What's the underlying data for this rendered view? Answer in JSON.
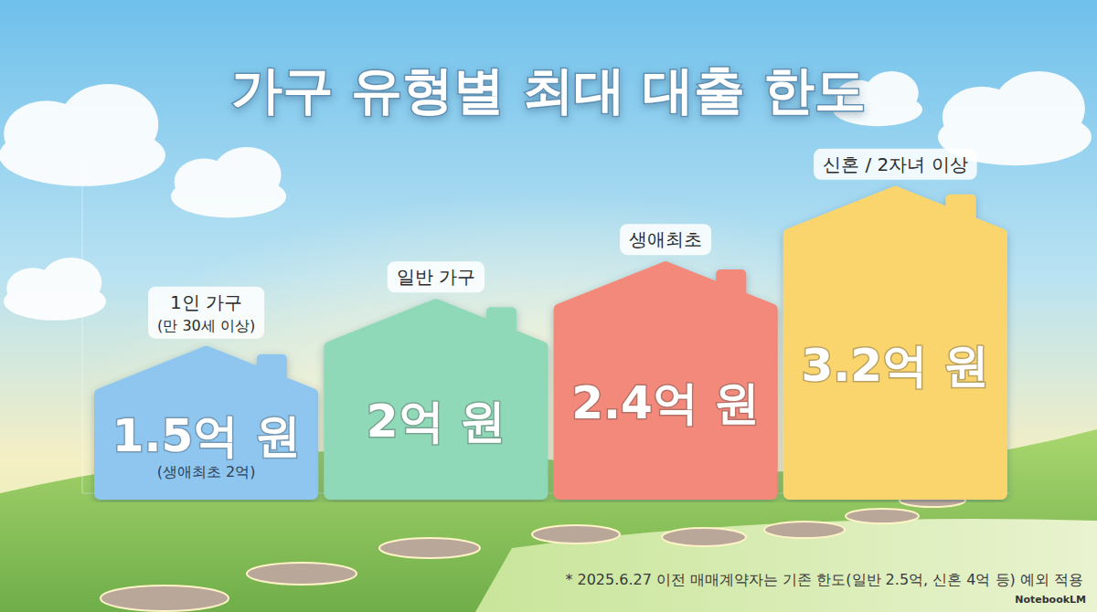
{
  "chart_data": {
    "type": "bar",
    "title": "가구 유형별 최대 대출 한도",
    "categories": [
      "1인 가구",
      "일반 가구",
      "생애최초",
      "신혼 / 2자녀 이상"
    ],
    "category_subtitles": [
      "(만 30세 이상)",
      null,
      null,
      null
    ],
    "values": [
      1.5,
      2,
      2.4,
      3.2
    ],
    "value_labels": [
      "1.5억 원",
      "2억 원",
      "2.4억 원",
      "3.2억 원"
    ],
    "value_notes": [
      "(생애최초 2억)",
      null,
      null,
      null
    ],
    "colors": [
      "#8ec6f0",
      "#8fd9b9",
      "#f3897a",
      "#fad46d"
    ],
    "data_labels": true,
    "tick_labels": false,
    "ylim": [
      0,
      3.5
    ],
    "footnote": "* 2025.6.27 이전 매매계약자는 기존 한도(일반 2.5억, 신혼 4억 등) 예외 적용",
    "watermark": "NotebookLM"
  }
}
